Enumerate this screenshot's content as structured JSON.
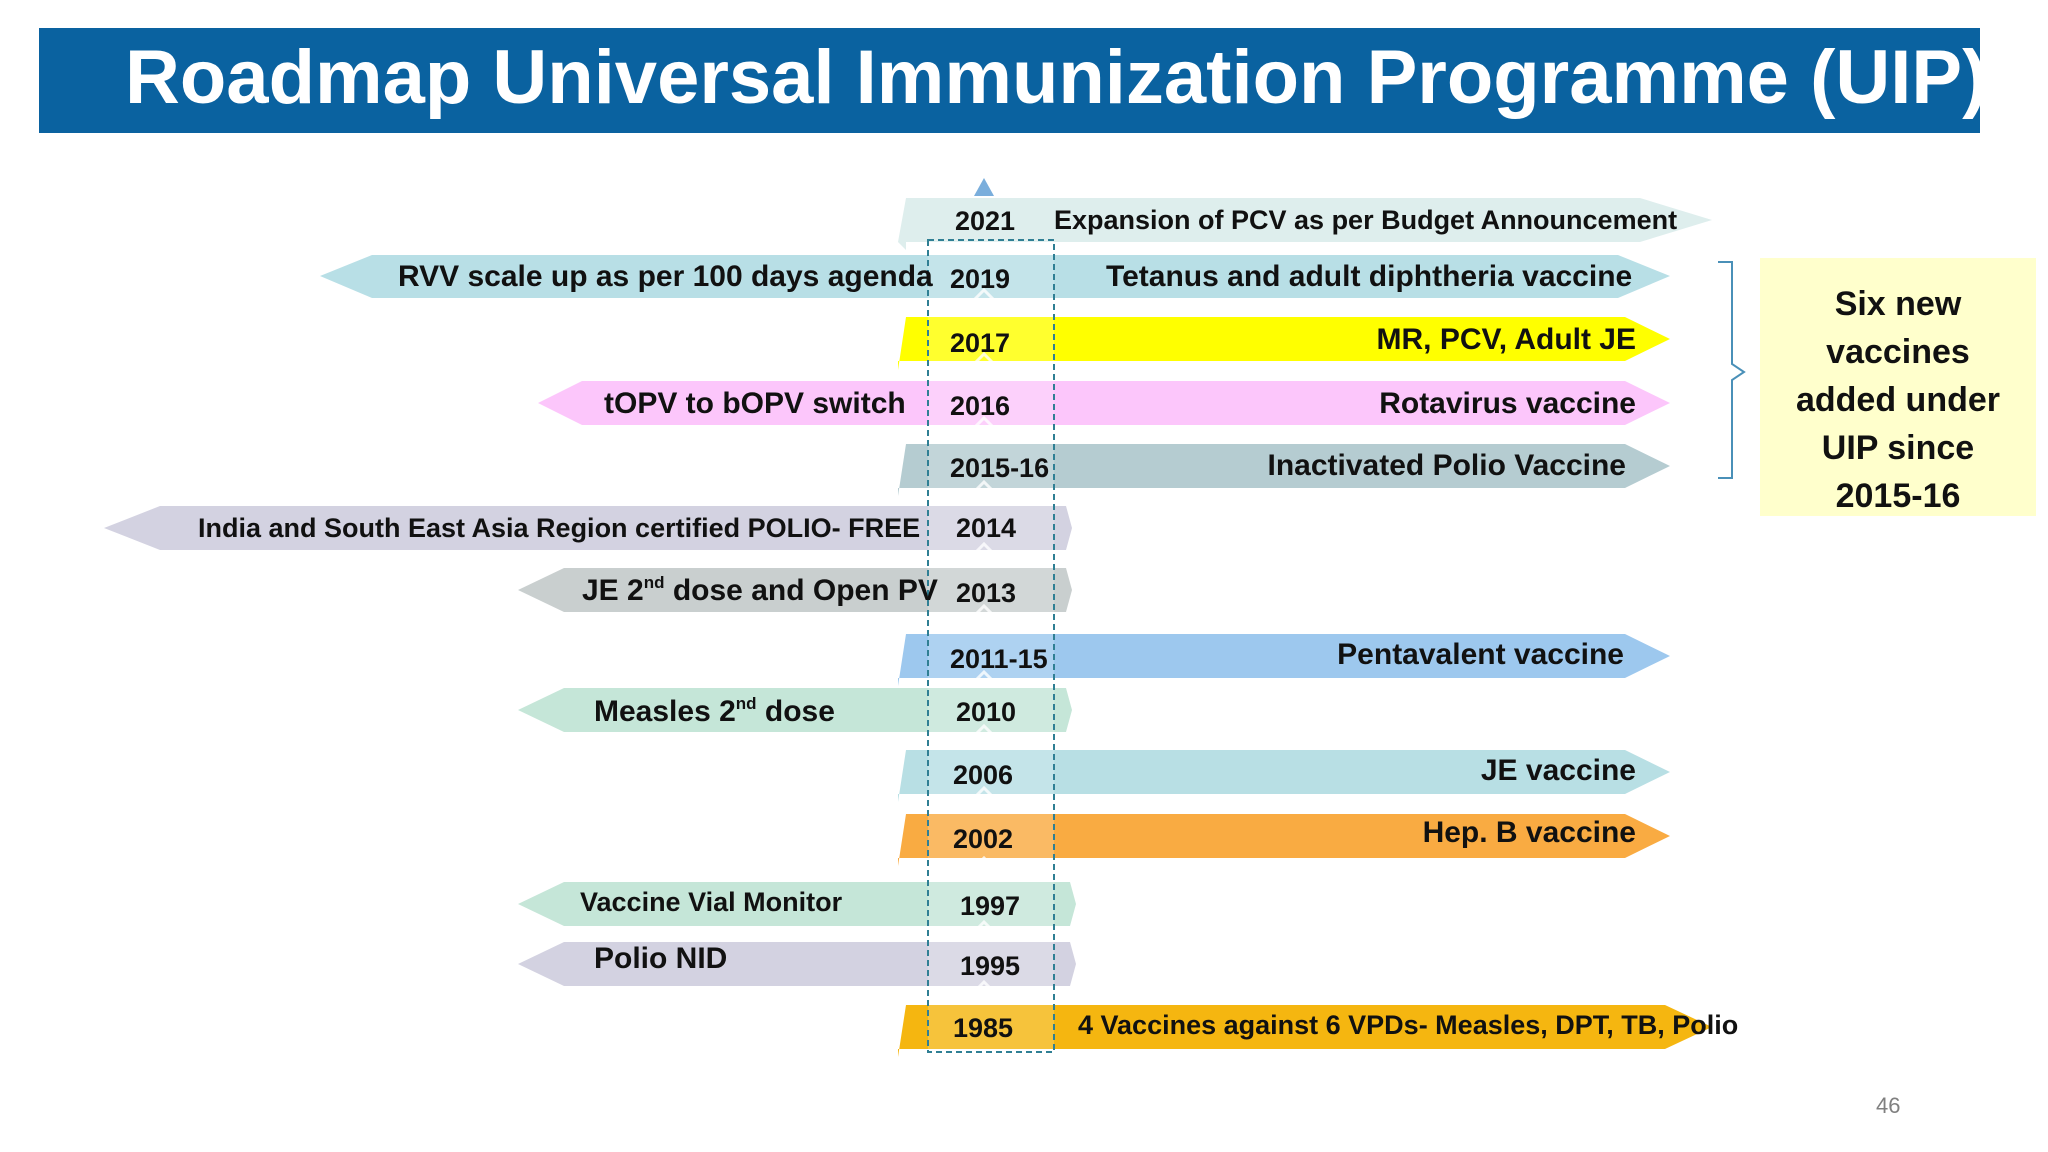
{
  "slide": {
    "title": "Roadmap Universal Immunization Programme (UIP)",
    "page_number": "46"
  },
  "colors": {
    "title_bg": "#0a62a0",
    "highlight_box": "#ffffcc",
    "bracket": "#4a90b8",
    "dashed_outline": "#2f7f94",
    "axis_arrow": "#7aaedc"
  },
  "timeline": {
    "rows": [
      {
        "year": "2021",
        "right_label": "Expansion of PCV as per Budget Announcement",
        "left_label": "",
        "right_color": "#deeeed",
        "left_color": ""
      },
      {
        "year": "2019",
        "right_label": "Tetanus and adult diphtheria vaccine",
        "left_label": "RVV scale up as per 100 days agenda",
        "right_color": "#b8dfe6",
        "left_color": "#b8dfe6"
      },
      {
        "year": "2017",
        "right_label": "MR, PCV, Adult JE",
        "left_label": "",
        "right_color": "#ffff00",
        "left_color": ""
      },
      {
        "year": "2016",
        "right_label": "Rotavirus vaccine",
        "left_label": "tOPV to bOPV switch",
        "right_color": "#fcc6fb",
        "left_color": "#fcc6fb"
      },
      {
        "year": "2015-16",
        "right_label": "Inactivated Polio Vaccine",
        "left_label": "",
        "right_color": "#b5ccd1",
        "left_color": ""
      },
      {
        "year": "2014",
        "right_label": "",
        "left_label": "India and South East Asia Region certified POLIO- FREE",
        "right_color": "",
        "left_color": "#d3d2e1"
      },
      {
        "year": "2013",
        "right_label": "",
        "left_label_main": "JE 2",
        "left_label_sup": "nd",
        "left_label_rest": " dose and Open PV",
        "right_color": "",
        "left_color": "#c9cfcf"
      },
      {
        "year": "2011-15",
        "right_label": "Pentavalent vaccine",
        "left_label": "",
        "right_color": "#9dc8ee",
        "left_color": ""
      },
      {
        "year": "2010",
        "right_label": "",
        "left_label_main": "Measles 2",
        "left_label_sup": "nd",
        "left_label_rest": " dose",
        "right_color": "",
        "left_color": "#c5e6d8"
      },
      {
        "year": "2006",
        "right_label": "JE vaccine",
        "left_label": "",
        "right_color": "#b8dfe4",
        "left_color": ""
      },
      {
        "year": "2002",
        "right_label": "Hep. B vaccine",
        "left_label": "",
        "right_color": "#f9ab42",
        "left_color": ""
      },
      {
        "year": "1997",
        "right_label": "",
        "left_label": "Vaccine Vial Monitor",
        "right_color": "",
        "left_color": "#c5e6d8"
      },
      {
        "year": "1995",
        "right_label": "",
        "left_label": "Polio NID",
        "right_color": "",
        "left_color": "#d3d2e1"
      },
      {
        "year": "1985",
        "right_label": "4 Vaccines against 6 VPDs- Measles, DPT, TB, Polio",
        "left_label": "",
        "right_color": "#f5b610",
        "left_color": ""
      }
    ]
  },
  "note": {
    "lines": [
      "Six new",
      "vaccines",
      "added under",
      "UIP since",
      "2015-16"
    ]
  }
}
